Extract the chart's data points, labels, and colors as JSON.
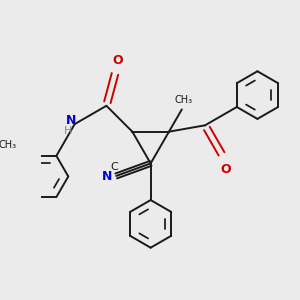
{
  "background_color": "#ebebeb",
  "bond_color": "#1a1a1a",
  "N_color": "#0000cc",
  "O_color": "#cc0000",
  "C_color": "#1a1a1a",
  "H_color": "#888888",
  "lw": 1.4,
  "figsize": [
    3.0,
    3.0
  ],
  "dpi": 100,
  "xlim": [
    -2.5,
    4.5
  ],
  "ylim": [
    -3.5,
    3.5
  ]
}
